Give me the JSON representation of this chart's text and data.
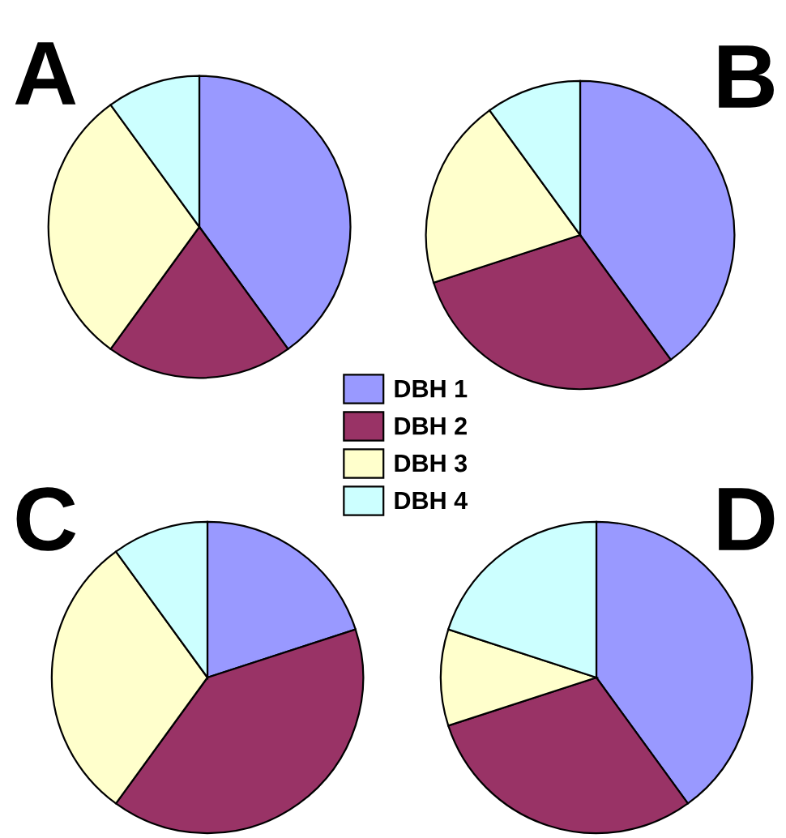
{
  "chart_data": [
    {
      "type": "pie",
      "title": "A",
      "categories": [
        "DBH 1",
        "DBH 2",
        "DBH 3",
        "DBH 4"
      ],
      "values": [
        40,
        20,
        30,
        10
      ],
      "colors": [
        "#9999ff",
        "#993366",
        "#ffffcc",
        "#ccffff"
      ],
      "legend": "bottom right"
    },
    {
      "type": "pie",
      "title": "B",
      "categories": [
        null,
        null,
        null,
        null
      ],
      "values": [
        40,
        30,
        20,
        10
      ],
      "colors": [
        "#9999ff",
        "#993366",
        "#ffffcc",
        "#ccffff"
      ]
    },
    {
      "type": "pie",
      "title": "C",
      "categories": [
        null,
        null,
        null,
        null
      ],
      "values": [
        20,
        40,
        30,
        10
      ],
      "colors": [
        "#9999ff",
        "#993366",
        "#ffffcc",
        "#ccffff"
      ]
    },
    {
      "type": "pie",
      "title": "D",
      "categories": [
        null,
        null,
        null,
        null
      ],
      "values": [
        40,
        30,
        10,
        20
      ],
      "colors": [
        "#9999ff",
        "#993366",
        "#ffffcc",
        "#ccffff"
      ]
    }
  ]
}
